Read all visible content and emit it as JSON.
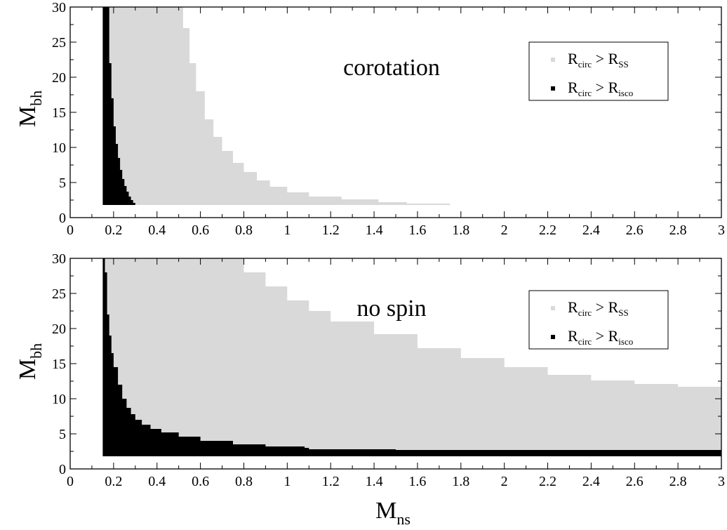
{
  "chart_data": [
    {
      "type": "area",
      "annotation": "corotation",
      "xlabel": {
        "main": "",
        "sub": ""
      },
      "ylabel": {
        "main": "M",
        "sub": "bh"
      },
      "xlim": [
        0,
        3
      ],
      "ylim": [
        0,
        30
      ],
      "xticks": [
        "0",
        "0.2",
        "0.4",
        "0.6",
        "0.8",
        "1",
        "1.2",
        "1.4",
        "1.6",
        "1.8",
        "2",
        "2.2",
        "2.4",
        "2.6",
        "2.8",
        "3"
      ],
      "yticks": [
        "0",
        "5",
        "10",
        "15",
        "20",
        "25",
        "30"
      ],
      "legend": {
        "position": "top-right",
        "entries": [
          {
            "main": "R",
            "sub1": "circ",
            "gt": " > ",
            "main2": "R",
            "sub2": "SS",
            "color": "#d9d9d9"
          },
          {
            "main": "R",
            "sub1": "circ",
            "gt": " > ",
            "main2": "R",
            "sub2": "isco",
            "color": "#000000"
          }
        ]
      },
      "series": [
        {
          "key": "rss",
          "color": "#d9d9d9",
          "y_min": 1.8,
          "boundary": [
            [
              0.15,
              30
            ],
            [
              0.5,
              30
            ],
            [
              0.52,
              27
            ],
            [
              0.55,
              22
            ],
            [
              0.58,
              18
            ],
            [
              0.62,
              14
            ],
            [
              0.66,
              11.5
            ],
            [
              0.7,
              9.5
            ],
            [
              0.75,
              7.8
            ],
            [
              0.8,
              6.5
            ],
            [
              0.86,
              5.3
            ],
            [
              0.92,
              4.4
            ],
            [
              1.0,
              3.6
            ],
            [
              1.1,
              3.0
            ],
            [
              1.25,
              2.6
            ],
            [
              1.42,
              2.2
            ],
            [
              1.55,
              2.0
            ],
            [
              1.75,
              1.9
            ]
          ]
        },
        {
          "key": "risco",
          "color": "#000000",
          "y_min": 1.8,
          "boundary": [
            [
              0.15,
              30
            ],
            [
              0.17,
              30
            ],
            [
              0.18,
              22
            ],
            [
              0.19,
              17
            ],
            [
              0.2,
              13
            ],
            [
              0.21,
              10.5
            ],
            [
              0.22,
              8.5
            ],
            [
              0.23,
              6.8
            ],
            [
              0.24,
              5.5
            ],
            [
              0.25,
              4.5
            ],
            [
              0.26,
              3.7
            ],
            [
              0.27,
              3.0
            ],
            [
              0.28,
              2.5
            ],
            [
              0.29,
              2.1
            ],
            [
              0.3,
              1.8
            ]
          ]
        }
      ]
    },
    {
      "type": "area",
      "annotation": "no spin",
      "xlabel": {
        "main": "M",
        "sub": "ns"
      },
      "ylabel": {
        "main": "M",
        "sub": "bh"
      },
      "xlim": [
        0,
        3
      ],
      "ylim": [
        0,
        30
      ],
      "xticks": [
        "0",
        "0.2",
        "0.4",
        "0.6",
        "0.8",
        "1",
        "1.2",
        "1.4",
        "1.6",
        "1.8",
        "2",
        "2.2",
        "2.4",
        "2.6",
        "2.8",
        "3"
      ],
      "yticks": [
        "0",
        "5",
        "10",
        "15",
        "20",
        "25",
        "30"
      ],
      "legend": {
        "position": "top-right",
        "entries": [
          {
            "main": "R",
            "sub1": "circ",
            "gt": " > ",
            "main2": "R",
            "sub2": "SS",
            "color": "#d9d9d9"
          },
          {
            "main": "R",
            "sub1": "circ",
            "gt": " > ",
            "main2": "R",
            "sub2": "isco",
            "color": "#000000"
          }
        ]
      },
      "series": [
        {
          "key": "rss",
          "color": "#d9d9d9",
          "y_min": 1.8,
          "boundary": [
            [
              0.15,
              30
            ],
            [
              0.73,
              30
            ],
            [
              0.8,
              28
            ],
            [
              0.9,
              26
            ],
            [
              1.0,
              24
            ],
            [
              1.1,
              22.5
            ],
            [
              1.2,
              21
            ],
            [
              1.4,
              19.2
            ],
            [
              1.6,
              17.2
            ],
            [
              1.8,
              15.8
            ],
            [
              2.0,
              14.5
            ],
            [
              2.2,
              13.4
            ],
            [
              2.4,
              12.6
            ],
            [
              2.6,
              12.1
            ],
            [
              2.8,
              11.7
            ],
            [
              3.0,
              11.2
            ]
          ]
        },
        {
          "key": "risco",
          "color": "#000000",
          "y_min": 1.8,
          "boundary": [
            [
              0.15,
              30
            ],
            [
              0.16,
              28
            ],
            [
              0.17,
              22
            ],
            [
              0.18,
              19
            ],
            [
              0.19,
              16.5
            ],
            [
              0.2,
              14.5
            ],
            [
              0.22,
              12
            ],
            [
              0.24,
              10
            ],
            [
              0.26,
              8.7
            ],
            [
              0.28,
              7.8
            ],
            [
              0.3,
              7.0
            ],
            [
              0.33,
              6.3
            ],
            [
              0.37,
              5.7
            ],
            [
              0.42,
              5.2
            ],
            [
              0.5,
              4.6
            ],
            [
              0.6,
              4.0
            ],
            [
              0.75,
              3.5
            ],
            [
              0.9,
              3.2
            ],
            [
              1.08,
              3.0
            ],
            [
              1.1,
              2.8
            ],
            [
              1.5,
              2.7
            ],
            [
              2.0,
              2.7
            ],
            [
              3.0,
              2.7
            ]
          ]
        }
      ]
    }
  ]
}
